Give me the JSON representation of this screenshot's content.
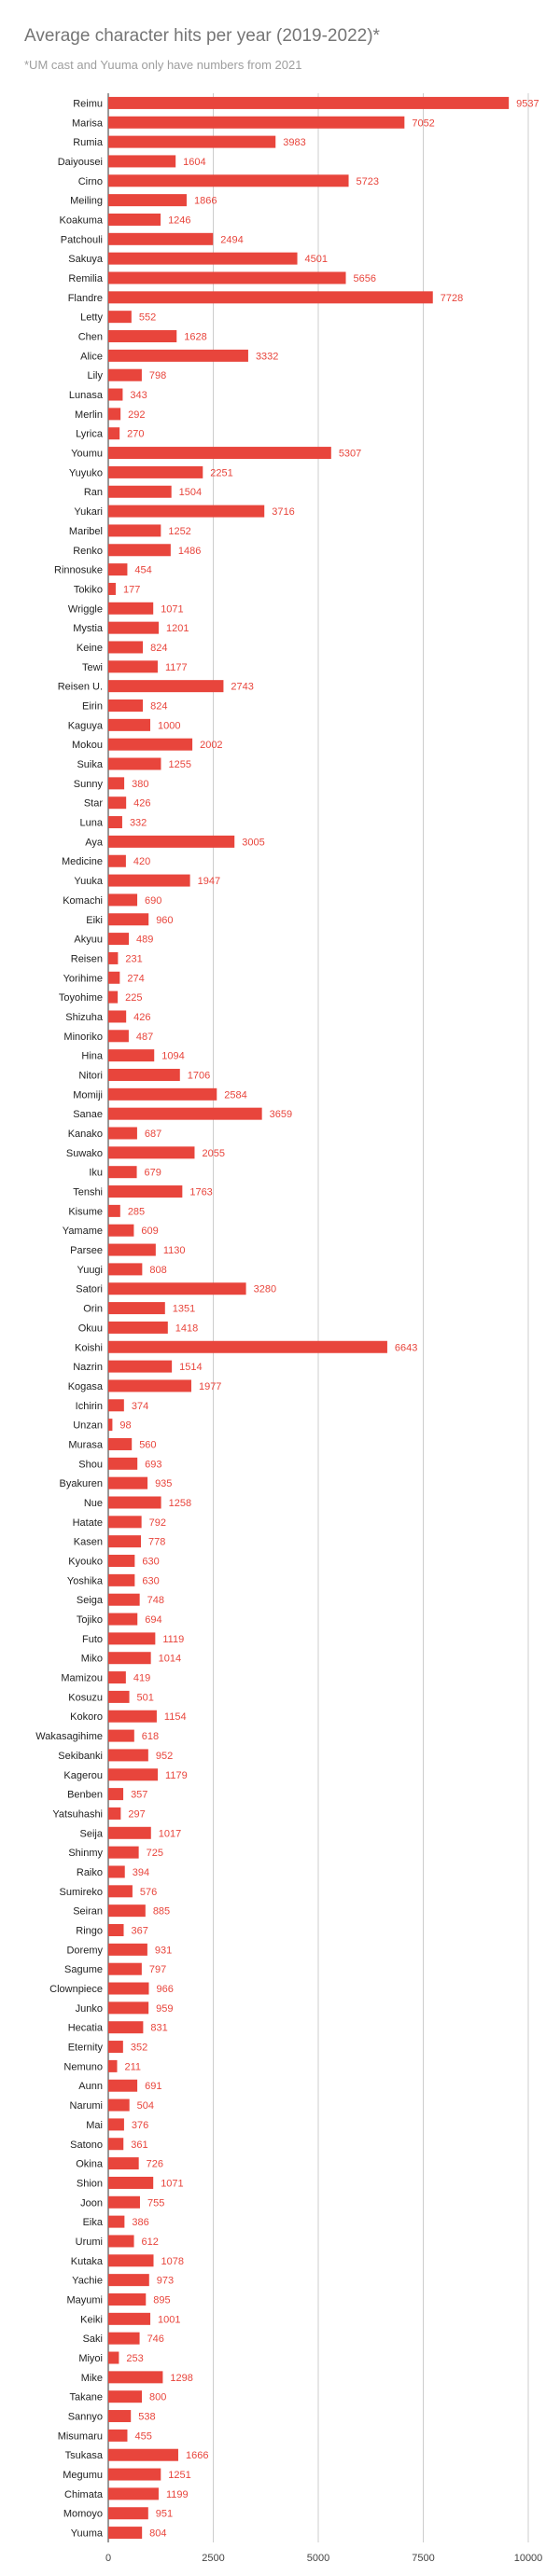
{
  "chart_data": {
    "type": "bar",
    "orientation": "horizontal",
    "title": "Average character hits per year (2019-2022)*",
    "subtitle": "*UM cast and Yuuma only have numbers from 2021",
    "bar_color": "#e8453c",
    "value_label_color": "#e8453c",
    "grid": true,
    "xlim": [
      0,
      10000
    ],
    "xticks": [
      "0",
      "2500",
      "5000",
      "7500",
      "10000"
    ],
    "categories": [
      "Reimu",
      "Marisa",
      "Rumia",
      "Daiyousei",
      "Cirno",
      "Meiling",
      "Koakuma",
      "Patchouli",
      "Sakuya",
      "Remilia",
      "Flandre",
      "Letty",
      "Chen",
      "Alice",
      "Lily",
      "Lunasa",
      "Merlin",
      "Lyrica",
      "Youmu",
      "Yuyuko",
      "Ran",
      "Yukari",
      "Maribel",
      "Renko",
      "Rinnosuke",
      "Tokiko",
      "Wriggle",
      "Mystia",
      "Keine",
      "Tewi",
      "Reisen U.",
      "Eirin",
      "Kaguya",
      "Mokou",
      "Suika",
      "Sunny",
      "Star",
      "Luna",
      "Aya",
      "Medicine",
      "Yuuka",
      "Komachi",
      "Eiki",
      "Akyuu",
      "Reisen",
      "Yorihime",
      "Toyohime",
      "Shizuha",
      "Minoriko",
      "Hina",
      "Nitori",
      "Momiji",
      "Sanae",
      "Kanako",
      "Suwako",
      "Iku",
      "Tenshi",
      "Kisume",
      "Yamame",
      "Parsee",
      "Yuugi",
      "Satori",
      "Orin",
      "Okuu",
      "Koishi",
      "Nazrin",
      "Kogasa",
      "Ichirin",
      "Unzan",
      "Murasa",
      "Shou",
      "Byakuren",
      "Nue",
      "Hatate",
      "Kasen",
      "Kyouko",
      "Yoshika",
      "Seiga",
      "Tojiko",
      "Futo",
      "Miko",
      "Mamizou",
      "Kosuzu",
      "Kokoro",
      "Wakasagihime",
      "Sekibanki",
      "Kagerou",
      "Benben",
      "Yatsuhashi",
      "Seija",
      "Shinmy",
      "Raiko",
      "Sumireko",
      "Seiran",
      "Ringo",
      "Doremy",
      "Sagume",
      "Clownpiece",
      "Junko",
      "Hecatia",
      "Eternity",
      "Nemuno",
      "Aunn",
      "Narumi",
      "Mai",
      "Satono",
      "Okina",
      "Shion",
      "Joon",
      "Eika",
      "Urumi",
      "Kutaka",
      "Yachie",
      "Mayumi",
      "Keiki",
      "Saki",
      "Miyoi",
      "Mike",
      "Takane",
      "Sannyo",
      "Misumaru",
      "Tsukasa",
      "Megumu",
      "Chimata",
      "Momoyo",
      "Yuuma"
    ],
    "values": [
      9537,
      7052,
      3983,
      1604,
      5723,
      1866,
      1246,
      2494,
      4501,
      5656,
      7728,
      552,
      1628,
      3332,
      798,
      343,
      292,
      270,
      5307,
      2251,
      1504,
      3716,
      1252,
      1486,
      454,
      177,
      1071,
      1201,
      824,
      1177,
      2743,
      824,
      1000,
      2002,
      1255,
      380,
      426,
      332,
      3005,
      420,
      1947,
      690,
      960,
      489,
      231,
      274,
      225,
      426,
      487,
      1094,
      1706,
      2584,
      3659,
      687,
      2055,
      679,
      1763,
      285,
      609,
      1130,
      808,
      3280,
      1351,
      1418,
      6643,
      1514,
      1977,
      374,
      98,
      560,
      693,
      935,
      1258,
      792,
      778,
      630,
      630,
      748,
      694,
      1119,
      1014,
      419,
      501,
      1154,
      618,
      952,
      1179,
      357,
      297,
      1017,
      725,
      394,
      576,
      885,
      367,
      931,
      797,
      966,
      959,
      831,
      352,
      211,
      691,
      504,
      376,
      361,
      726,
      1071,
      755,
      386,
      612,
      1078,
      973,
      895,
      1001,
      746,
      253,
      1298,
      800,
      538,
      455,
      1666,
      1251,
      1199,
      951,
      804
    ]
  }
}
